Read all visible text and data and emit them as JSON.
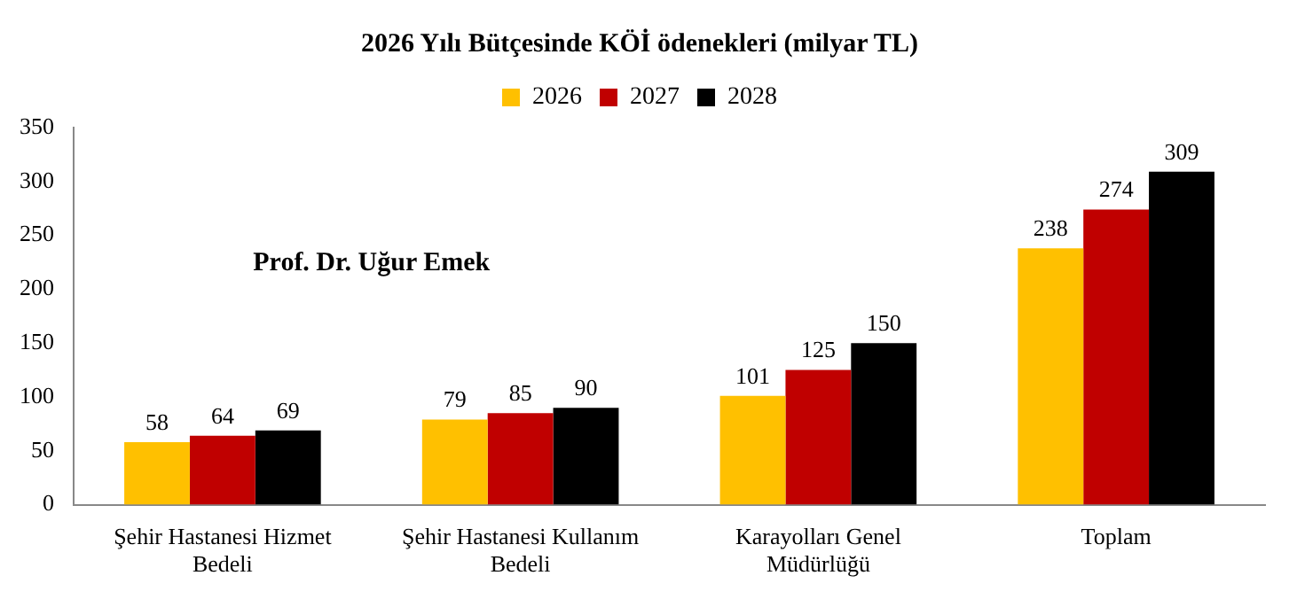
{
  "chart_data": {
    "type": "bar",
    "title": "2026 Yılı Bütçesinde KÖİ ödenekleri (milyar TL)",
    "categories": [
      "Şehir Hastanesi Hizmet Bedeli",
      "Şehir Hastanesi Kullanım Bedeli",
      "Karayolları Genel Müdürlüğü",
      "Toplam"
    ],
    "series": [
      {
        "name": "2026",
        "color": "#ffc000",
        "values": [
          58,
          79,
          101,
          238
        ]
      },
      {
        "name": "2027",
        "color": "#c00000",
        "values": [
          64,
          85,
          125,
          274
        ]
      },
      {
        "name": "2028",
        "color": "#000000",
        "values": [
          69,
          90,
          150,
          309
        ]
      }
    ],
    "ylim": [
      0,
      350
    ],
    "yticks": [
      0,
      50,
      100,
      150,
      200,
      250,
      300,
      350
    ],
    "grid": false,
    "legend": "top",
    "data_labels": true,
    "annotations": [
      "Prof. Dr. Uğur Emek"
    ]
  }
}
